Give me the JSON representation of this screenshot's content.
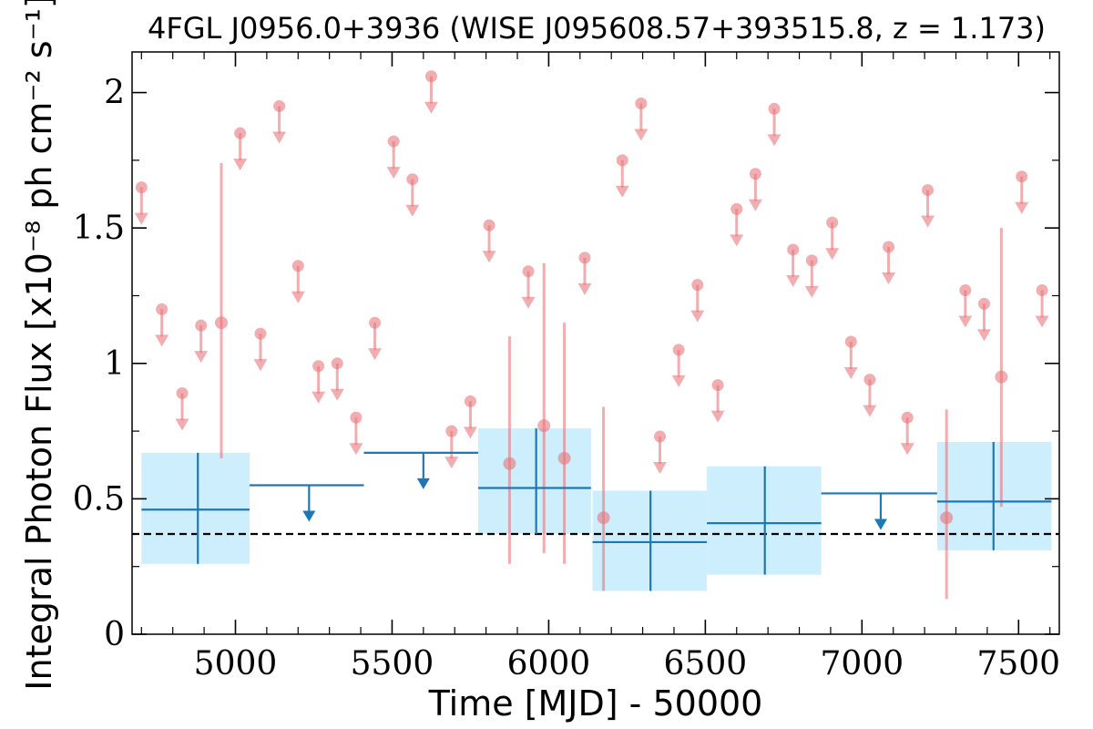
{
  "chart_data": {
    "type": "scatter",
    "title": "4FGL J0956.0+3936 (WISE J095608.57+393515.8, z = 1.173)",
    "xlabel": "Time [MJD] - 50000",
    "ylabel": "Integral Photon Flux [x10⁻⁸ ph cm⁻² s⁻¹]",
    "xlim": [
      4670,
      7630
    ],
    "ylim": [
      0,
      2.15
    ],
    "x_ticks": [
      5000,
      5500,
      6000,
      6500,
      7000,
      7500
    ],
    "x_tick_labels": [
      "5000",
      "5500",
      "6000",
      "6500",
      "7000",
      "7500"
    ],
    "y_ticks": [
      0,
      0.5,
      1,
      1.5,
      2
    ],
    "y_tick_labels": [
      "0",
      "0.5",
      "1",
      "1.5",
      "2"
    ],
    "reference_line": {
      "y": 0.37,
      "style": "dashed",
      "color": "#000000"
    },
    "colors": {
      "short_bins": "#e8777a",
      "yearly_bins": "#1f77b4",
      "yearly_band": "#cdeefc"
    },
    "series": [
      {
        "marker": "circle-with-errorbar",
        "points": [
          {
            "x": 4955,
            "y": 1.15,
            "ylow": 0.65,
            "yhigh": 1.74
          },
          {
            "x": 5875,
            "y": 0.63,
            "ylow": 0.26,
            "yhigh": 1.1
          },
          {
            "x": 5985,
            "y": 0.77,
            "ylow": 0.3,
            "yhigh": 1.37
          },
          {
            "x": 6050,
            "y": 0.65,
            "ylow": 0.26,
            "yhigh": 1.15
          },
          {
            "x": 6175,
            "y": 0.43,
            "ylow": 0.16,
            "yhigh": 0.84
          },
          {
            "x": 7270,
            "y": 0.43,
            "ylow": 0.13,
            "yhigh": 0.83
          },
          {
            "x": 7445,
            "y": 0.95,
            "ylow": 0.47,
            "yhigh": 1.5
          }
        ]
      },
      {
        "marker": "upper-limit",
        "points": [
          {
            "x": 4700,
            "y": 1.65
          },
          {
            "x": 4765,
            "y": 1.2
          },
          {
            "x": 4830,
            "y": 0.89
          },
          {
            "x": 4890,
            "y": 1.14
          },
          {
            "x": 5015,
            "y": 1.85
          },
          {
            "x": 5080,
            "y": 1.11
          },
          {
            "x": 5140,
            "y": 1.95
          },
          {
            "x": 5200,
            "y": 1.36
          },
          {
            "x": 5265,
            "y": 0.99
          },
          {
            "x": 5325,
            "y": 1.0
          },
          {
            "x": 5385,
            "y": 0.8
          },
          {
            "x": 5445,
            "y": 1.15
          },
          {
            "x": 5505,
            "y": 1.82
          },
          {
            "x": 5565,
            "y": 1.68
          },
          {
            "x": 5625,
            "y": 2.06
          },
          {
            "x": 5690,
            "y": 0.75
          },
          {
            "x": 5750,
            "y": 0.86
          },
          {
            "x": 5810,
            "y": 1.51
          },
          {
            "x": 5935,
            "y": 1.34
          },
          {
            "x": 6115,
            "y": 1.39
          },
          {
            "x": 6235,
            "y": 1.75
          },
          {
            "x": 6295,
            "y": 1.96
          },
          {
            "x": 6355,
            "y": 0.73
          },
          {
            "x": 6415,
            "y": 1.05
          },
          {
            "x": 6475,
            "y": 1.29
          },
          {
            "x": 6540,
            "y": 0.92
          },
          {
            "x": 6600,
            "y": 1.57
          },
          {
            "x": 6660,
            "y": 1.7
          },
          {
            "x": 6720,
            "y": 1.94
          },
          {
            "x": 6780,
            "y": 1.42
          },
          {
            "x": 6840,
            "y": 1.38
          },
          {
            "x": 6905,
            "y": 1.52
          },
          {
            "x": 6965,
            "y": 1.08
          },
          {
            "x": 7025,
            "y": 0.94
          },
          {
            "x": 7085,
            "y": 1.43
          },
          {
            "x": 7145,
            "y": 0.8
          },
          {
            "x": 7210,
            "y": 1.64
          },
          {
            "x": 7330,
            "y": 1.27
          },
          {
            "x": 7390,
            "y": 1.22
          },
          {
            "x": 7510,
            "y": 1.69
          },
          {
            "x": 7575,
            "y": 1.27
          }
        ]
      },
      {
        "marker": "bin-crosshair-with-band",
        "bins": [
          {
            "x_start": 4700,
            "x_end": 5045,
            "x": 4880,
            "y": 0.46,
            "ylow": 0.26,
            "yhigh": 0.67
          },
          {
            "x_start": 5775,
            "x_end": 6135,
            "x": 5960,
            "y": 0.54,
            "ylow": 0.37,
            "yhigh": 0.76
          },
          {
            "x_start": 6140,
            "x_end": 6505,
            "x": 6325,
            "y": 0.34,
            "ylow": 0.16,
            "yhigh": 0.53
          },
          {
            "x_start": 6505,
            "x_end": 6870,
            "x": 6690,
            "y": 0.41,
            "ylow": 0.22,
            "yhigh": 0.62
          },
          {
            "x_start": 7240,
            "x_end": 7605,
            "x": 7420,
            "y": 0.49,
            "ylow": 0.31,
            "yhigh": 0.71
          }
        ]
      },
      {
        "marker": "bin-upper-limit",
        "bins": [
          {
            "x_start": 5045,
            "x_end": 5410,
            "x": 5235,
            "y": 0.55
          },
          {
            "x_start": 5410,
            "x_end": 5775,
            "x": 5600,
            "y": 0.67
          },
          {
            "x_start": 6870,
            "x_end": 7240,
            "x": 7060,
            "y": 0.52
          }
        ]
      }
    ]
  }
}
